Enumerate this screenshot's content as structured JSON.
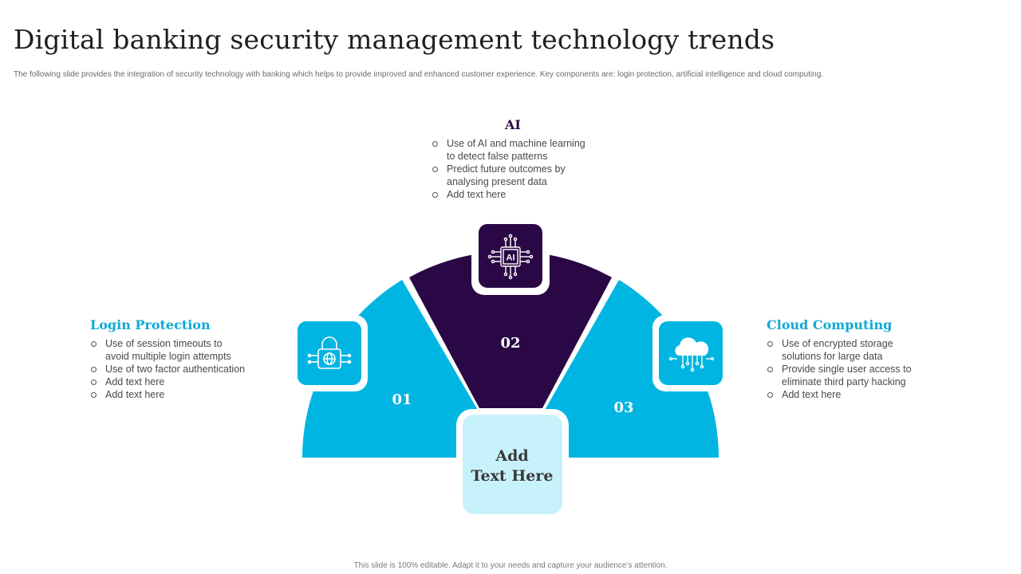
{
  "header": {
    "title": "Digital banking security management technology trends",
    "subtitle": "The following slide provides the integration of security technology with banking which helps to provide improved and enhanced customer experience. Key components are: login protection, artificial intelligence and cloud computing."
  },
  "sections": {
    "login": {
      "number": "01",
      "heading": "Login Protection",
      "icon": "lock-icon",
      "bullets": [
        [
          "Use of session timeouts to",
          "avoid  multiple login attempts"
        ],
        [
          "Use of two factor authentication"
        ],
        [
          "Add text here"
        ],
        [
          "Add text here"
        ]
      ]
    },
    "ai": {
      "number": "02",
      "heading": "AI",
      "icon": "ai-chip-icon",
      "icon_text": "AI",
      "bullets": [
        [
          "Use of AI and machine learning",
          "to detect false patterns"
        ],
        [
          "Predict future outcomes by",
          "analysing present data"
        ],
        [
          "Add text here"
        ]
      ]
    },
    "cloud": {
      "number": "03",
      "heading": "Cloud Computing",
      "icon": "cloud-icon",
      "bullets": [
        [
          "Use of encrypted storage",
          "solutions for large data"
        ],
        [
          "Provide  single user access to",
          "eliminate third party hacking"
        ],
        [
          "Add text here"
        ]
      ]
    }
  },
  "center": {
    "line1": "Add",
    "line2": "Text Here"
  },
  "footer": {
    "note": "This slide is 100% editable. Adapt it to your needs and capture your audience’s attention."
  },
  "colors": {
    "cyan": "#00b5e2",
    "purple": "#2a0845",
    "light_cyan": "#c8f2fb",
    "heading_cyan": "#11a9d6"
  }
}
